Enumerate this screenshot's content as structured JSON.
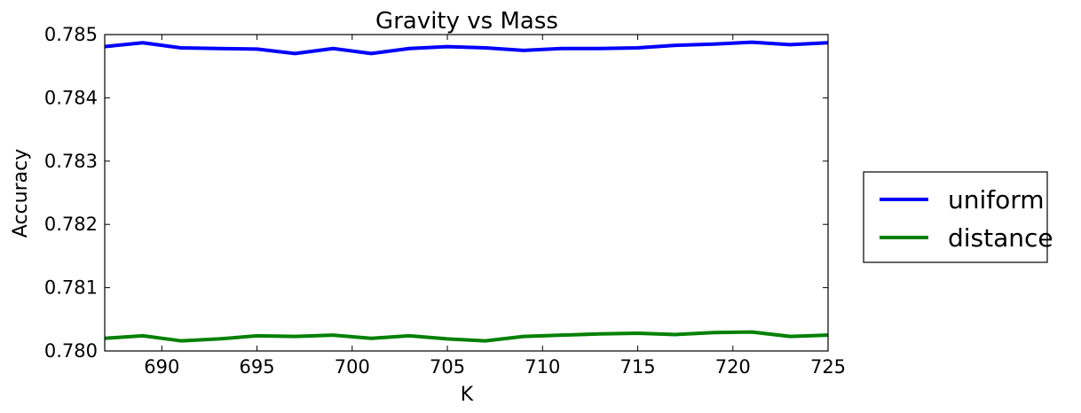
{
  "chart_data": {
    "type": "line",
    "title": "Gravity vs Mass",
    "xlabel": "K",
    "ylabel": "Accuracy",
    "xlim": [
      687,
      725
    ],
    "ylim": [
      0.78,
      0.785
    ],
    "xticks": [
      690,
      695,
      700,
      705,
      710,
      715,
      720,
      725
    ],
    "xtick_labels": [
      "690",
      "695",
      "700",
      "705",
      "710",
      "715",
      "720",
      "725"
    ],
    "yticks": [
      0.78,
      0.781,
      0.782,
      0.783,
      0.784,
      0.785
    ],
    "ytick_labels": [
      "0.780",
      "0.781",
      "0.782",
      "0.783",
      "0.784",
      "0.785"
    ],
    "grid": false,
    "legend_position": "outside-right",
    "x": [
      687,
      689,
      691,
      693,
      695,
      697,
      699,
      701,
      703,
      705,
      707,
      709,
      711,
      713,
      715,
      717,
      719,
      721,
      723,
      725
    ],
    "series": [
      {
        "name": "uniform",
        "color": "#0000ff",
        "values": [
          0.78481,
          0.78487,
          0.78479,
          0.78478,
          0.78477,
          0.7847,
          0.78478,
          0.7847,
          0.78478,
          0.78481,
          0.78479,
          0.78475,
          0.78478,
          0.78478,
          0.78479,
          0.78483,
          0.78485,
          0.78488,
          0.78484,
          0.78487
        ]
      },
      {
        "name": "distance",
        "color": "#008000",
        "values": [
          0.7802,
          0.78024,
          0.78016,
          0.78019,
          0.78024,
          0.78023,
          0.78025,
          0.7802,
          0.78024,
          0.78019,
          0.78016,
          0.78023,
          0.78025,
          0.78027,
          0.78028,
          0.78026,
          0.78029,
          0.7803,
          0.78023,
          0.78025
        ]
      }
    ]
  }
}
